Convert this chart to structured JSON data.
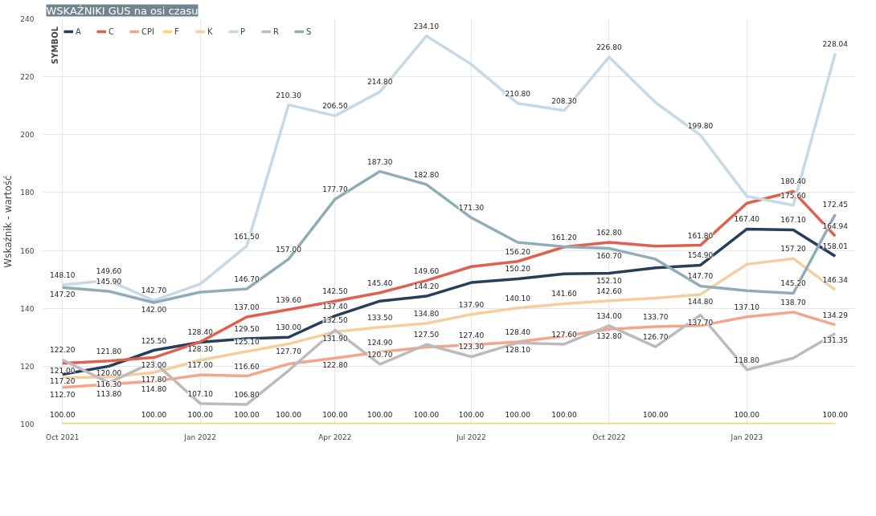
{
  "chart_data": {
    "type": "line",
    "title": "WSKAŹNIKI GUS na osi czasu",
    "ylabel": "Wskaźnik - wartość",
    "legend_title": "SYMBOL",
    "legend": "top left",
    "grid": true,
    "line_style": "solid",
    "x": [
      "2021-10",
      "2021-11",
      "2021-12",
      "2022-01",
      "2022-02",
      "2022-03",
      "2022-04",
      "2022-05",
      "2022-06",
      "2022-07",
      "2022-08",
      "2022-09",
      "2022-10",
      "2022-11",
      "2022-12",
      "2023-01",
      "2023-02",
      "2023-03"
    ],
    "xlim": [
      "2021-09-18",
      "2023-03-14"
    ],
    "xticks": [
      {
        "value": "2021-10",
        "label": "Oct 2021"
      },
      {
        "value": "2022-01",
        "label": "Jan 2022"
      },
      {
        "value": "2022-04",
        "label": "Apr 2022"
      },
      {
        "value": "2022-07",
        "label": "Jul 2022"
      },
      {
        "value": "2022-10",
        "label": "Oct 2022"
      },
      {
        "value": "2023-01",
        "label": "Jan 2023"
      }
    ],
    "ylim": [
      100,
      240
    ],
    "yticks": [
      100,
      120,
      140,
      160,
      180,
      200,
      220,
      240
    ],
    "series": [
      {
        "name": "A",
        "color": "#253f5b",
        "values": [
          117.2,
          120.0,
          125.5,
          128.3,
          129.5,
          130.0,
          137.4,
          142.5,
          144.2,
          148.9,
          150.2,
          151.9,
          152.1,
          154.0,
          154.9,
          167.4,
          167.1,
          158.01
        ],
        "value_labels": [
          "117.20",
          "120.00",
          "125.50",
          "128.30",
          "129.50",
          "130.00",
          "137.40",
          null,
          "144.20",
          null,
          "150.20",
          null,
          "152.10",
          null,
          "154.90",
          "167.40",
          "167.10",
          "158.01"
        ]
      },
      {
        "name": "C",
        "color": "#e0604f",
        "values": [
          121.0,
          121.8,
          123.0,
          128.4,
          137.0,
          139.6,
          142.5,
          145.4,
          149.6,
          154.4,
          156.2,
          161.2,
          162.8,
          161.5,
          161.8,
          176.3,
          180.4,
          164.94
        ],
        "value_labels": [
          "121.00",
          "121.80",
          "123.00",
          "128.40",
          "137.00",
          "139.60",
          "142.50",
          "145.40",
          "149.60",
          null,
          "156.20",
          "161.20",
          "162.80",
          null,
          "161.80",
          null,
          "180.40",
          "164.94"
        ]
      },
      {
        "name": "CPI",
        "color": "#f4a58a",
        "values": [
          112.7,
          113.8,
          114.8,
          117.0,
          116.6,
          120.8,
          122.8,
          124.9,
          126.6,
          127.4,
          128.4,
          130.4,
          132.8,
          133.7,
          134.0,
          137.1,
          138.7,
          134.29
        ],
        "value_labels": [
          "112.70",
          "113.80",
          "114.80",
          "117.00",
          "116.60",
          null,
          "122.80",
          "124.90",
          null,
          "127.40",
          "128.40",
          null,
          "132.80",
          "133.70",
          null,
          "137.10",
          "138.70",
          "134.29"
        ]
      },
      {
        "name": "F",
        "color": "#f5d76e",
        "values": [
          100,
          100,
          100,
          100,
          100,
          100,
          100,
          100,
          100,
          100,
          100,
          100,
          100,
          100,
          100,
          100,
          100,
          100
        ],
        "value_labels": [
          "100.00",
          null,
          "100.00",
          "100.00",
          "100.00",
          "100.00",
          "100.00",
          "100.00",
          "100.00",
          "100.00",
          "100.00",
          "100.00",
          null,
          "100.00",
          null,
          "100.00",
          null,
          "100.00"
        ]
      },
      {
        "name": "K",
        "color": "#f3cfa0",
        "values": [
          116.0,
          116.3,
          117.8,
          122.1,
          125.1,
          127.7,
          131.9,
          133.5,
          134.8,
          137.9,
          140.1,
          141.6,
          142.6,
          143.5,
          144.8,
          155.2,
          157.2,
          146.34
        ],
        "value_labels": [
          null,
          "116.30",
          "117.80",
          null,
          "125.10",
          "127.70",
          "131.90",
          "133.50",
          "134.80",
          "137.90",
          "140.10",
          "141.60",
          "142.60",
          null,
          "144.80",
          null,
          "157.20",
          "146.34"
        ]
      },
      {
        "name": "P",
        "color": "#c5d9e6",
        "values": [
          148.1,
          149.6,
          142.7,
          148.4,
          161.5,
          210.3,
          206.5,
          214.8,
          234.1,
          224.3,
          210.8,
          208.3,
          226.8,
          211.1,
          199.8,
          178.7,
          175.6,
          228.04
        ],
        "value_labels": [
          "148.10",
          "149.60",
          "142.70",
          null,
          "161.50",
          "210.30",
          "206.50",
          "214.80",
          "234.10",
          null,
          "210.80",
          "208.30",
          "226.80",
          null,
          "199.80",
          null,
          "175.60",
          "228.04"
        ]
      },
      {
        "name": "R",
        "color": "#c0b9ba",
        "values": [
          122.2,
          114.3,
          121.5,
          107.1,
          106.8,
          118.5,
          132.5,
          120.7,
          127.5,
          123.3,
          128.1,
          127.6,
          134.0,
          126.7,
          137.7,
          118.8,
          122.8,
          131.35
        ],
        "value_labels": [
          "122.20",
          null,
          null,
          "107.10",
          "106.80",
          null,
          "132.50",
          "120.70",
          "127.50",
          "123.30",
          "128.10",
          "127.60",
          "134.00",
          "126.70",
          "137.70",
          "118.80",
          null,
          "131.35"
        ]
      },
      {
        "name": "S",
        "color": "#8fadb8",
        "values": [
          147.2,
          145.9,
          142.0,
          145.6,
          146.7,
          157.0,
          177.7,
          187.3,
          182.8,
          171.3,
          162.8,
          161.3,
          160.7,
          157.0,
          147.7,
          146.1,
          145.2,
          172.45
        ],
        "value_labels": [
          "147.20",
          "145.90",
          "142.00",
          null,
          "146.70",
          "157.00",
          "177.70",
          "187.30",
          "182.80",
          "171.30",
          null,
          null,
          "160.70",
          null,
          "147.70",
          null,
          "145.20",
          "172.45"
        ]
      }
    ]
  }
}
